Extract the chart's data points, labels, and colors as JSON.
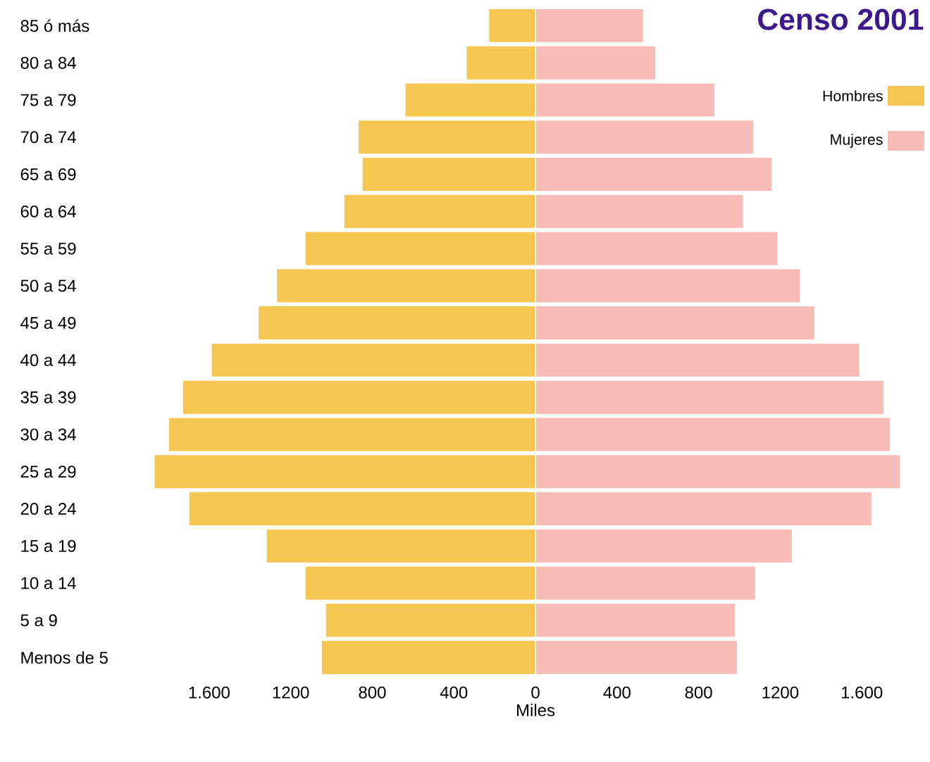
{
  "chart_data": {
    "type": "bar",
    "orientation": "horizontal",
    "title": "Censo 2001",
    "xlabel": "Miles",
    "categories": [
      "85 ó más",
      "80 a 84",
      "75 a 79",
      "70 a 74",
      "65 a 69",
      "60 a 64",
      "55 a 59",
      "50 a 54",
      "45 a 49",
      "40 a 44",
      "35 a 39",
      "30 a 34",
      "25 a 29",
      "20 a 24",
      "15 a 19",
      "10 a 14",
      "5 a 9",
      "Menos de 5"
    ],
    "series": [
      {
        "name": "Hombres",
        "color": "#f5c751",
        "values": [
          -230,
          -340,
          -640,
          -870,
          -850,
          -940,
          -1130,
          -1270,
          -1360,
          -1590,
          -1730,
          -1800,
          -1870,
          -1700,
          -1320,
          -1130,
          -1030,
          -1050
        ]
      },
      {
        "name": "Mujeres",
        "color": "#f7bcb6",
        "values": [
          530,
          590,
          880,
          1070,
          1160,
          1020,
          1190,
          1300,
          1370,
          1590,
          1710,
          1740,
          1790,
          1650,
          1260,
          1080,
          980,
          990
        ]
      }
    ],
    "xlim": [
      -1900,
      1900
    ],
    "xticks": [
      {
        "value": -1600,
        "label": "1.600"
      },
      {
        "value": -1200,
        "label": "1200"
      },
      {
        "value": -800,
        "label": "800"
      },
      {
        "value": -400,
        "label": "400"
      },
      0,
      400,
      800,
      1200,
      {
        "value": 1600,
        "label": "1.600"
      }
    ],
    "stacked": true,
    "grid": false,
    "legend": "top right"
  }
}
